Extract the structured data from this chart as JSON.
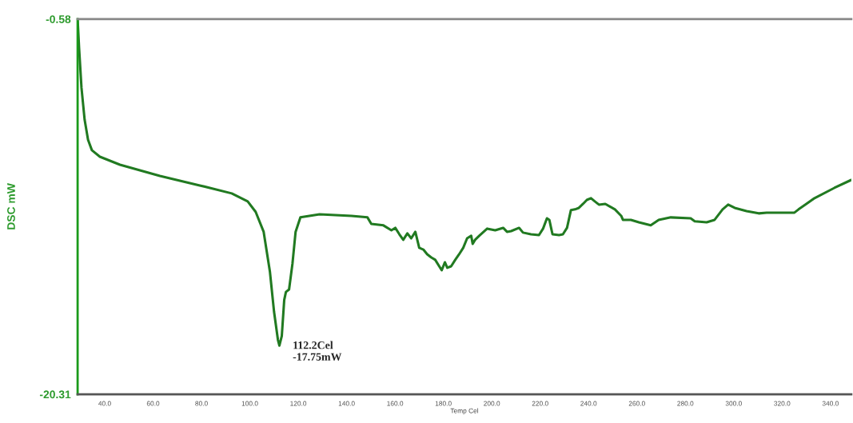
{
  "chart_data": {
    "type": "line",
    "xlabel": "Temp Cel",
    "ylabel": "DSC mW",
    "xlim": [
      28.8,
      348.6
    ],
    "ylim": [
      -20.31,
      -0.58
    ],
    "xticks": [
      {
        "value": 40,
        "label": "40.0"
      },
      {
        "value": 60,
        "label": "60.0"
      },
      {
        "value": 80,
        "label": "80.0"
      },
      {
        "value": 100,
        "label": "100.0"
      },
      {
        "value": 120,
        "label": "120.0"
      },
      {
        "value": 140,
        "label": "140.0"
      },
      {
        "value": 160,
        "label": "160.0"
      },
      {
        "value": 180,
        "label": "180.0"
      },
      {
        "value": 200,
        "label": "200.0"
      },
      {
        "value": 220,
        "label": "220.0"
      },
      {
        "value": 240,
        "label": "240.0"
      },
      {
        "value": 260,
        "label": "260.0"
      },
      {
        "value": 280,
        "label": "280.0"
      },
      {
        "value": 300,
        "label": "300.0"
      },
      {
        "value": 320,
        "label": "320.0"
      },
      {
        "value": 340,
        "label": "340.0"
      }
    ],
    "yticks": [
      -20.31,
      -0.58
    ],
    "grid": false,
    "marker": "none",
    "line_style": "solid",
    "annotations": [
      {
        "text": "112.2Cel\n-17.75mW",
        "x": 112.2,
        "y": -17.75
      }
    ],
    "series": [
      {
        "color": "#217a21",
        "x": [
          28.8,
          29.4,
          30.4,
          31.7,
          33.1,
          34.7,
          38.0,
          46.3,
          62.8,
          79.3,
          92.5,
          99.1,
          102.4,
          105.7,
          108.3,
          110.0,
          111.6,
          112.2,
          113.2,
          114.2,
          114.9,
          116.2,
          117.6,
          118.9,
          120.9,
          128.8,
          142.0,
          148.6,
          150.2,
          155.2,
          158.5,
          160.1,
          161.8,
          163.4,
          165.1,
          166.7,
          168.4,
          170.0,
          171.7,
          173.3,
          175.0,
          176.6,
          179.3,
          180.6,
          181.6,
          183.2,
          184.9,
          186.5,
          188.2,
          189.8,
          191.5,
          192.1,
          193.1,
          194.8,
          198.1,
          201.4,
          204.7,
          206.3,
          208.0,
          211.3,
          212.9,
          216.2,
          219.5,
          221.2,
          222.8,
          223.8,
          224.5,
          225.1,
          227.8,
          229.4,
          231.1,
          232.7,
          234.4,
          236.0,
          237.7,
          239.3,
          241.0,
          242.6,
          244.3,
          246.9,
          250.9,
          253.5,
          254.2,
          257.5,
          260.8,
          265.7,
          269.0,
          274.0,
          282.2,
          283.9,
          288.8,
          292.1,
          295.4,
          297.7,
          300.4,
          305.3,
          310.3,
          313.6,
          325.1,
          326.8,
          333.4,
          341.6,
          348.6
        ],
        "values": [
          -0.58,
          -2.09,
          -4.2,
          -5.88,
          -6.93,
          -7.48,
          -7.82,
          -8.24,
          -8.83,
          -9.33,
          -9.75,
          -10.17,
          -10.72,
          -11.77,
          -13.88,
          -15.98,
          -17.45,
          -17.75,
          -17.24,
          -15.35,
          -14.93,
          -14.8,
          -13.45,
          -11.77,
          -11.01,
          -10.85,
          -10.93,
          -11.01,
          -11.35,
          -11.43,
          -11.69,
          -11.56,
          -11.9,
          -12.19,
          -11.85,
          -12.11,
          -11.77,
          -12.61,
          -12.7,
          -12.95,
          -13.12,
          -13.24,
          -13.79,
          -13.37,
          -13.66,
          -13.58,
          -13.24,
          -12.95,
          -12.61,
          -12.11,
          -11.98,
          -12.4,
          -12.19,
          -11.98,
          -11.6,
          -11.69,
          -11.56,
          -11.77,
          -11.73,
          -11.56,
          -11.81,
          -11.9,
          -11.94,
          -11.6,
          -11.06,
          -11.14,
          -11.56,
          -11.9,
          -11.94,
          -11.9,
          -11.56,
          -10.63,
          -10.59,
          -10.51,
          -10.3,
          -10.09,
          -10.0,
          -10.17,
          -10.34,
          -10.3,
          -10.59,
          -10.93,
          -11.14,
          -11.14,
          -11.27,
          -11.43,
          -11.14,
          -11.01,
          -11.06,
          -11.22,
          -11.27,
          -11.14,
          -10.59,
          -10.34,
          -10.51,
          -10.68,
          -10.8,
          -10.76,
          -10.76,
          -10.59,
          -10.0,
          -9.46,
          -9.04
        ]
      }
    ]
  }
}
